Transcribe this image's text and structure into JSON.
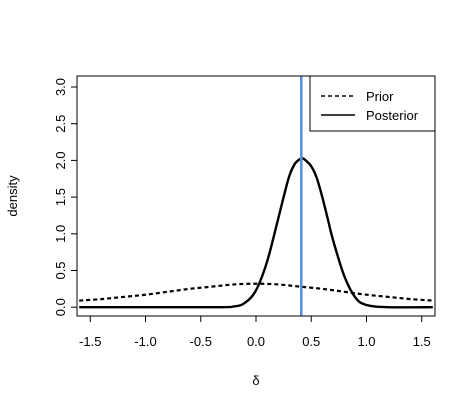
{
  "chart_data": {
    "type": "line",
    "xlabel": "δ",
    "ylabel": "density",
    "xlim": [
      -1.62,
      1.62
    ],
    "ylim": [
      -0.12,
      3.15
    ],
    "x_ticks": [
      -1.5,
      -1.0,
      -0.5,
      0.0,
      0.5,
      1.0,
      1.5
    ],
    "x_tick_labels": [
      "-1.5",
      "-1.0",
      "-0.5",
      "0.0",
      "0.5",
      "1.0",
      "1.5"
    ],
    "y_ticks": [
      0.0,
      0.5,
      1.0,
      1.5,
      2.0,
      2.5,
      3.0
    ],
    "y_tick_labels": [
      "0.0",
      "0.5",
      "1.0",
      "1.5",
      "2.0",
      "2.5",
      "3.0"
    ],
    "grid": false,
    "legend_position": "top-right",
    "series": [
      {
        "name": "Prior",
        "style": "dashed",
        "color": "#000000",
        "x": [
          -1.6,
          -1.4,
          -1.2,
          -1.0,
          -0.8,
          -0.6,
          -0.4,
          -0.2,
          0.0,
          0.2,
          0.4,
          0.6,
          0.8,
          1.0,
          1.2,
          1.4,
          1.6
        ],
        "y": [
          0.09,
          0.11,
          0.14,
          0.17,
          0.21,
          0.25,
          0.28,
          0.31,
          0.32,
          0.31,
          0.28,
          0.25,
          0.21,
          0.17,
          0.14,
          0.11,
          0.09
        ]
      },
      {
        "name": "Posterior",
        "style": "solid",
        "color": "#000000",
        "x": [
          -1.6,
          -0.4,
          -0.2,
          -0.1,
          0.0,
          0.1,
          0.2,
          0.25,
          0.3,
          0.35,
          0.4,
          0.42,
          0.45,
          0.5,
          0.55,
          0.6,
          0.65,
          0.7,
          0.8,
          0.9,
          1.0,
          1.2,
          1.6
        ],
        "y": [
          0.0,
          0.0,
          0.01,
          0.06,
          0.23,
          0.62,
          1.2,
          1.5,
          1.78,
          1.95,
          2.02,
          2.03,
          2.0,
          1.92,
          1.76,
          1.5,
          1.2,
          0.9,
          0.42,
          0.13,
          0.03,
          0.0,
          0.0
        ]
      }
    ],
    "reference_line": {
      "orientation": "vertical",
      "x": 0.41,
      "color": "#5b8fe0"
    }
  }
}
